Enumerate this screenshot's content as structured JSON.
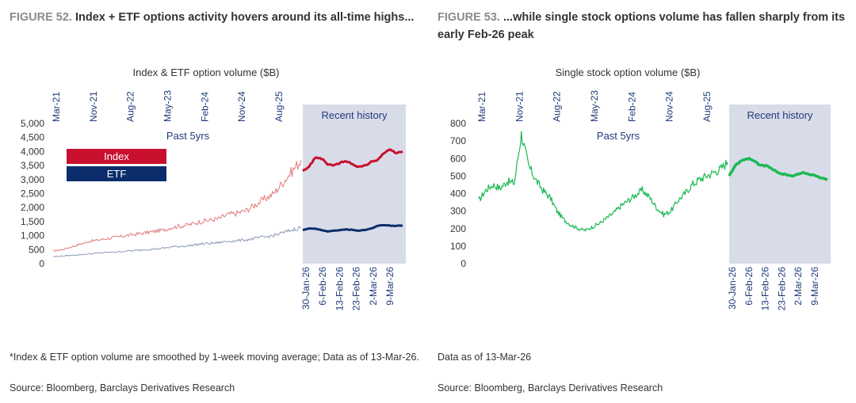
{
  "figures": [
    {
      "number": "FIGURE 52.",
      "title_text": "Index + ETF options activity hovers around its all-time highs...",
      "footnote": "*Index & ETF option volume are smoothed by 1-week moving average; Data as of 13-Mar-26.",
      "source": "Source: Bloomberg, Barclays Derivatives Research"
    },
    {
      "number": "FIGURE 53.",
      "title_text": "...while single stock options volume has fallen sharply from its early Feb-26 peak",
      "footnote": "Data as of 13-Mar-26",
      "source": "Source: Bloomberg, Barclays Derivatives Research"
    }
  ],
  "colors": {
    "index": "#c8102e",
    "index_light": "#e07a7a",
    "etf": "#0b2d6b",
    "etf_light": "#8e9ab8",
    "single": "#1db954",
    "shade": "#d8dce8"
  },
  "chart_data": [
    {
      "type": "line",
      "title": "Index & ETF option volume  ($B)",
      "ylabel": "",
      "ylim": [
        0,
        5000
      ],
      "yticks": [
        "5,000",
        "4,500",
        "4,000",
        "3,500",
        "3,000",
        "2,500",
        "2,000",
        "1,500",
        "1,000",
        "500",
        "0"
      ],
      "top_axis_labels": [
        "Mar-21",
        "Nov-21",
        "Aug-22",
        "May-23",
        "Feb-24",
        "Nov-24",
        "Aug-25"
      ],
      "bottom_axis_labels": [
        "30-Jan-26",
        "6-Feb-26",
        "13-Feb-26",
        "23-Feb-26",
        "2-Mar-26",
        "9-Mar-26"
      ],
      "shaded_region_label": "Recent history",
      "past_label": "Past 5yrs",
      "legend": [
        "Index",
        "ETF"
      ],
      "series": [
        {
          "name": "Index",
          "segment": "past",
          "values": [
            450,
            500,
            600,
            700,
            800,
            850,
            900,
            950,
            1000,
            1050,
            1100,
            1150,
            1200,
            1300,
            1350,
            1400,
            1500,
            1550,
            1600,
            1750,
            1800,
            1900,
            2100,
            2300,
            2500,
            2900,
            3300,
            3700
          ]
        },
        {
          "name": "Index",
          "segment": "recent",
          "values": [
            3300,
            3450,
            3800,
            3750,
            3550,
            3500,
            3600,
            3650,
            3550,
            3450,
            3500,
            3650,
            3700,
            3950,
            4050,
            3950,
            4000
          ]
        },
        {
          "name": "ETF",
          "segment": "past",
          "values": [
            250,
            270,
            300,
            320,
            350,
            380,
            400,
            420,
            450,
            470,
            500,
            520,
            550,
            600,
            620,
            650,
            700,
            720,
            750,
            800,
            820,
            850,
            900,
            950,
            1000,
            1100,
            1200,
            1300
          ]
        },
        {
          "name": "ETF",
          "segment": "recent",
          "values": [
            1200,
            1250,
            1250,
            1200,
            1150,
            1180,
            1200,
            1220,
            1200,
            1180,
            1200,
            1250,
            1350,
            1380,
            1360,
            1350,
            1350
          ]
        }
      ]
    },
    {
      "type": "line",
      "title": "Single stock option volume  ($B)",
      "ylabel": "",
      "ylim": [
        0,
        800
      ],
      "yticks": [
        "800",
        "700",
        "600",
        "500",
        "400",
        "300",
        "200",
        "100",
        "0"
      ],
      "top_axis_labels": [
        "Mar-21",
        "Nov-21",
        "Aug-22",
        "May-23",
        "Feb-24",
        "Nov-24",
        "Aug-25"
      ],
      "bottom_axis_labels": [
        "30-Jan-26",
        "6-Feb-26",
        "13-Feb-26",
        "23-Feb-26",
        "2-Mar-26",
        "9-Mar-26"
      ],
      "shaded_region_label": "Recent history",
      "past_label": "Past 5yrs",
      "series": [
        {
          "name": "Single stock",
          "segment": "past",
          "values": [
            360,
            420,
            450,
            430,
            470,
            460,
            740,
            560,
            480,
            420,
            380,
            300,
            250,
            220,
            200,
            190,
            210,
            230,
            260,
            290,
            330,
            360,
            390,
            420,
            380,
            320,
            280,
            300,
            360,
            400,
            450,
            480,
            500,
            520,
            540,
            580
          ]
        },
        {
          "name": "Single stock",
          "segment": "recent",
          "values": [
            500,
            560,
            590,
            600,
            590,
            560,
            560,
            540,
            520,
            510,
            500,
            510,
            520,
            510,
            500,
            490,
            480
          ]
        }
      ]
    }
  ]
}
